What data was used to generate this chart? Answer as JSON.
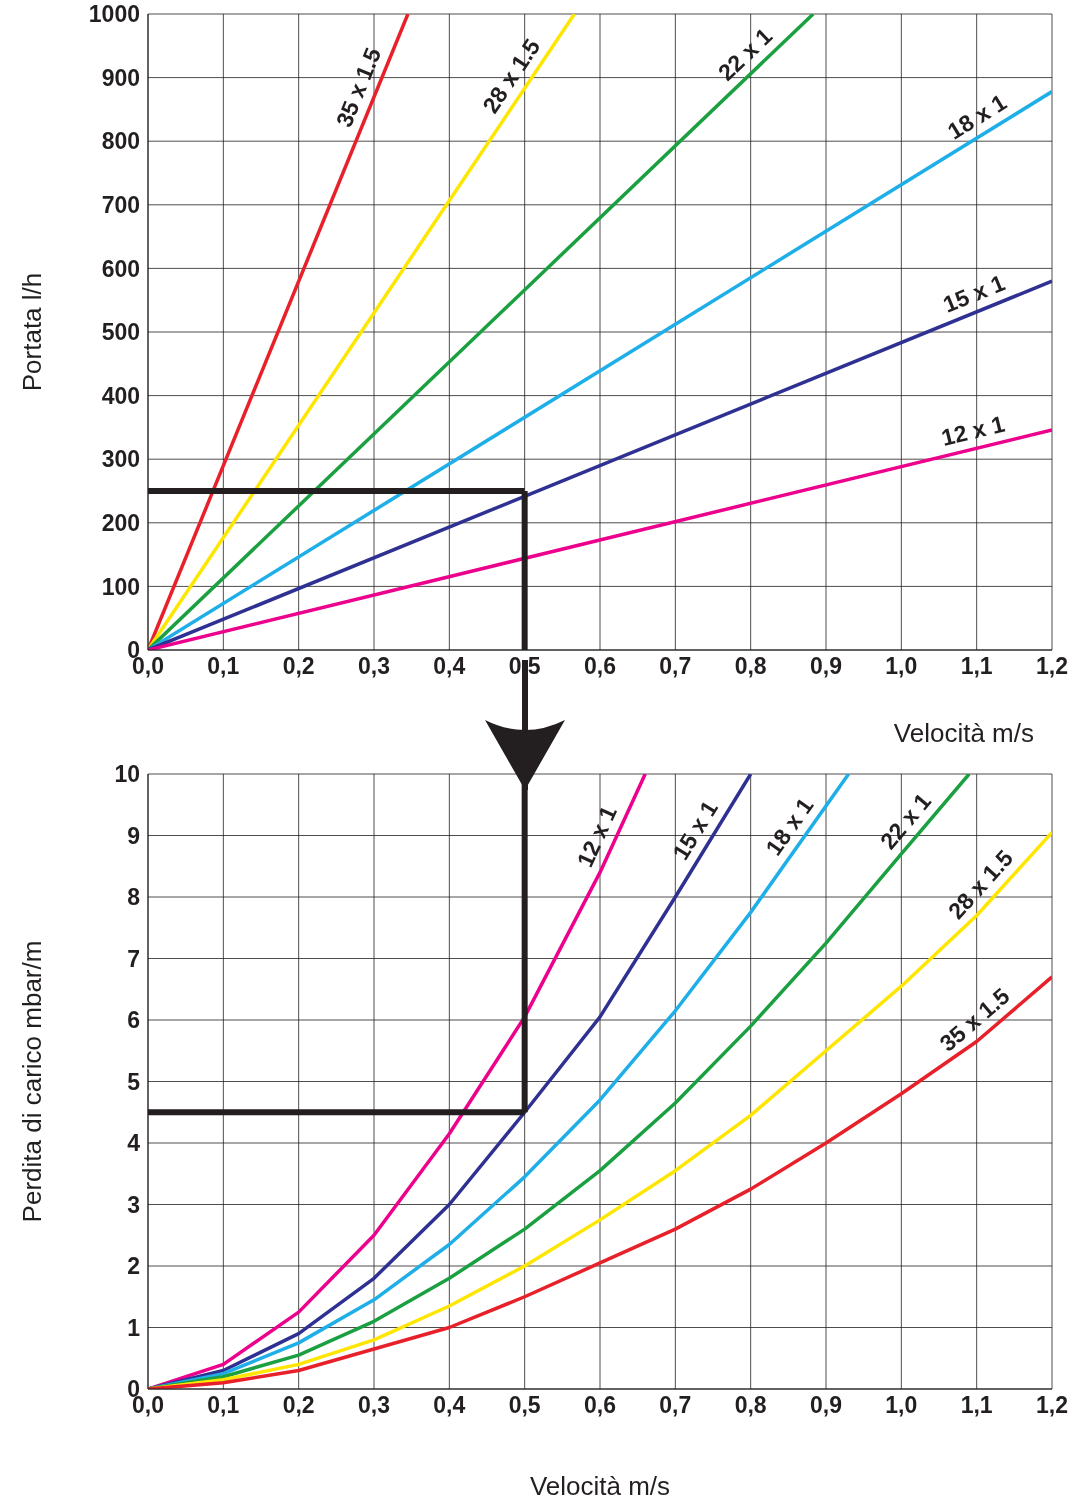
{
  "chart_data": [
    {
      "type": "line",
      "xlabel": "Velocità m/s",
      "ylabel": "Portata l/h",
      "grid": true,
      "marker": "none",
      "line_style": "solid",
      "xlim": [
        0,
        1.2
      ],
      "ylim": [
        0,
        1000
      ],
      "xticks": [
        {
          "value": 0,
          "label": "0,0"
        },
        {
          "value": 0.1,
          "label": "0,1"
        },
        {
          "value": 0.2,
          "label": "0,2"
        },
        {
          "value": 0.3,
          "label": "0,3"
        },
        {
          "value": 0.4,
          "label": "0,4"
        },
        {
          "value": 0.5,
          "label": "0,5"
        },
        {
          "value": 0.6,
          "label": "0,6"
        },
        {
          "value": 0.7,
          "label": "0,7"
        },
        {
          "value": 0.8,
          "label": "0,8"
        },
        {
          "value": 0.9,
          "label": "0,9"
        },
        {
          "value": 1.0,
          "label": "1,0"
        },
        {
          "value": 1.1,
          "label": "1,1"
        },
        {
          "value": 1.2,
          "label": "1,2"
        }
      ],
      "yticks": [
        0,
        100,
        200,
        300,
        400,
        500,
        600,
        700,
        800,
        900,
        1000
      ],
      "series": [
        {
          "name": "35 x 1.5",
          "color": "#e8202a",
          "x": [
            0,
            0.345
          ],
          "values": [
            0,
            1000
          ]
        },
        {
          "name": "28 x 1.5",
          "color": "#ffe600",
          "x": [
            0,
            0.566
          ],
          "values": [
            0,
            1000
          ]
        },
        {
          "name": "22 x 1",
          "color": "#1aa040",
          "x": [
            0,
            0.883
          ],
          "values": [
            0,
            1000
          ]
        },
        {
          "name": "18 x 1",
          "color": "#1eaee8",
          "x": [
            0,
            1.2
          ],
          "values": [
            0,
            878
          ]
        },
        {
          "name": "15 x 1",
          "color": "#2e3192",
          "x": [
            0,
            1.2
          ],
          "values": [
            0,
            580
          ]
        },
        {
          "name": "12 x 1",
          "color": "#ec008c",
          "x": [
            0,
            1.2
          ],
          "values": [
            0,
            346
          ]
        }
      ],
      "ref_lines": [
        {
          "axis": "y",
          "value": 250,
          "color": "#231f20"
        },
        {
          "axis": "x",
          "value": 0.5,
          "color": "#231f20"
        }
      ]
    },
    {
      "type": "line",
      "xlabel": "Velocità m/s",
      "ylabel": "Perdita di carico mbar/m",
      "grid": true,
      "marker": "none",
      "line_style": "solid",
      "xlim": [
        0,
        1.2
      ],
      "ylim": [
        0,
        10
      ],
      "xticks": [
        {
          "value": 0,
          "label": "0,0"
        },
        {
          "value": 0.1,
          "label": "0,1"
        },
        {
          "value": 0.2,
          "label": "0,2"
        },
        {
          "value": 0.3,
          "label": "0,3"
        },
        {
          "value": 0.4,
          "label": "0,4"
        },
        {
          "value": 0.5,
          "label": "0,5"
        },
        {
          "value": 0.6,
          "label": "0,6"
        },
        {
          "value": 0.7,
          "label": "0,7"
        },
        {
          "value": 0.8,
          "label": "0,8"
        },
        {
          "value": 0.9,
          "label": "0,9"
        },
        {
          "value": 1.0,
          "label": "1,0"
        },
        {
          "value": 1.1,
          "label": "1,1"
        },
        {
          "value": 1.2,
          "label": "1,2"
        }
      ],
      "yticks": [
        0,
        1,
        2,
        3,
        4,
        5,
        6,
        7,
        8,
        9,
        10
      ],
      "series": [
        {
          "name": "12 x 1",
          "color": "#ec008c",
          "x": [
            0,
            0.1,
            0.2,
            0.3,
            0.4,
            0.5,
            0.6,
            0.66
          ],
          "values": [
            0,
            0.4,
            1.25,
            2.5,
            4.15,
            6.05,
            8.4,
            10
          ]
        },
        {
          "name": "15 x 1",
          "color": "#2e3192",
          "x": [
            0,
            0.1,
            0.2,
            0.3,
            0.4,
            0.5,
            0.6,
            0.7,
            0.8
          ],
          "values": [
            0,
            0.3,
            0.9,
            1.8,
            3.0,
            4.5,
            6.05,
            8.0,
            10
          ]
        },
        {
          "name": "18 x 1",
          "color": "#1eaee8",
          "x": [
            0,
            0.1,
            0.2,
            0.3,
            0.4,
            0.5,
            0.6,
            0.7,
            0.8,
            0.93
          ],
          "values": [
            0,
            0.25,
            0.75,
            1.45,
            2.35,
            3.45,
            4.7,
            6.15,
            7.75,
            10
          ]
        },
        {
          "name": "22 x 1",
          "color": "#1aa040",
          "x": [
            0,
            0.1,
            0.2,
            0.3,
            0.4,
            0.5,
            0.6,
            0.7,
            0.8,
            0.9,
            1.0,
            1.09
          ],
          "values": [
            0,
            0.2,
            0.55,
            1.1,
            1.8,
            2.6,
            3.55,
            4.65,
            5.9,
            7.25,
            8.7,
            10
          ]
        },
        {
          "name": "28 x 1.5",
          "color": "#ffe600",
          "x": [
            0,
            0.1,
            0.2,
            0.3,
            0.4,
            0.5,
            0.6,
            0.7,
            0.8,
            0.9,
            1.0,
            1.1,
            1.2
          ],
          "values": [
            0,
            0.15,
            0.4,
            0.8,
            1.35,
            2.0,
            2.75,
            3.55,
            4.45,
            5.5,
            6.55,
            7.7,
            9.05
          ]
        },
        {
          "name": "35 x 1.5",
          "color": "#e8202a",
          "x": [
            0,
            0.1,
            0.2,
            0.3,
            0.4,
            0.5,
            0.6,
            0.7,
            0.8,
            0.9,
            1.0,
            1.1,
            1.2
          ],
          "values": [
            0,
            0.1,
            0.3,
            0.65,
            1.0,
            1.5,
            2.05,
            2.6,
            3.25,
            4.0,
            4.8,
            5.65,
            6.7
          ]
        }
      ],
      "ref_lines": [
        {
          "axis": "y",
          "value": 4.5,
          "color": "#231f20"
        },
        {
          "axis": "x",
          "value": 0.5,
          "color": "#231f20"
        }
      ]
    }
  ]
}
